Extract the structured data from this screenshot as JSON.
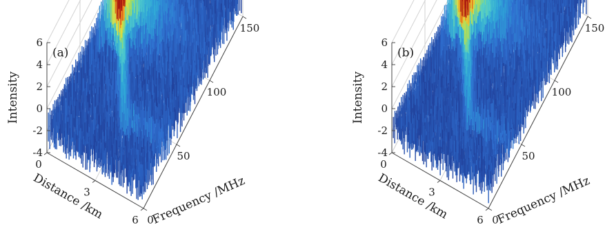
{
  "chart_data": [
    {
      "type": "surface3d",
      "panel_label": "(a)",
      "zlabel": "Intensity",
      "xlabel": "Distance /km",
      "ylabel": "Frequency /MHz",
      "z_ticks": [
        "6",
        "4",
        "2",
        "0",
        "-2",
        "-4"
      ],
      "x_ticks": [
        "0",
        "3",
        "6"
      ],
      "y_ticks": [
        "0",
        "50",
        "100",
        "150"
      ],
      "zlim": [
        -4,
        6
      ],
      "xlim": [
        0,
        6
      ],
      "ylim": [
        0,
        150
      ],
      "grid": true,
      "peak": {
        "distance_km": 0.2,
        "frequency_mhz": 110,
        "intensity": 5.6
      },
      "colormap": [
        "#1f3a93",
        "#2f6fd0",
        "#2fa8d8",
        "#55d0c8",
        "#a6dc5a",
        "#f2e23a",
        "#f4a020",
        "#d84818",
        "#a81810"
      ]
    },
    {
      "type": "surface3d",
      "panel_label": "(b)",
      "zlabel": "Intensity",
      "xlabel": "Distance /km",
      "ylabel": "Frequency /MHz",
      "z_ticks": [
        "6",
        "4",
        "2",
        "0",
        "-2",
        "-4"
      ],
      "x_ticks": [
        "0",
        "3",
        "6"
      ],
      "y_ticks": [
        "0",
        "50",
        "100",
        "150"
      ],
      "zlim": [
        -4,
        6
      ],
      "xlim": [
        0,
        6
      ],
      "ylim": [
        0,
        150
      ],
      "grid": true,
      "peak": {
        "distance_km": 0.2,
        "frequency_mhz": 110,
        "intensity": 6.1
      },
      "colormap": [
        "#1f3a93",
        "#2f6fd0",
        "#2fa8d8",
        "#55d0c8",
        "#a6dc5a",
        "#f2e23a",
        "#f4a020",
        "#d84818",
        "#a81810"
      ]
    }
  ]
}
